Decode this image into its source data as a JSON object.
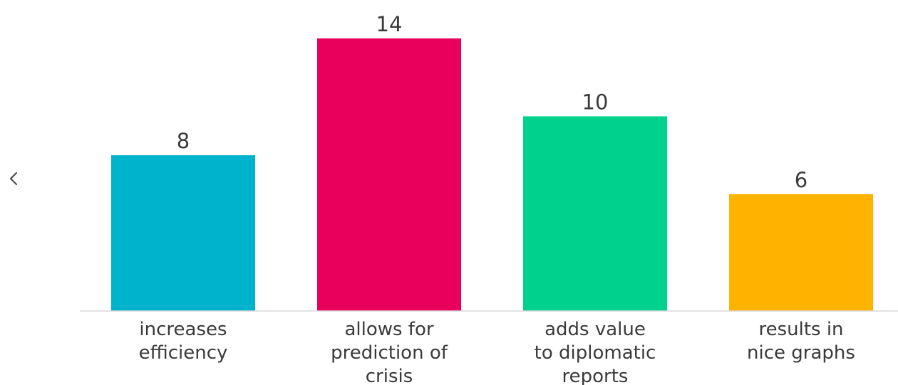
{
  "nav": {
    "prev_icon": "chevron-left-icon"
  },
  "chart_data": {
    "type": "bar",
    "categories": [
      [
        "increases",
        "efficiency"
      ],
      [
        "allows for",
        "prediction of",
        "crisis"
      ],
      [
        "adds value",
        "to diplomatic",
        "reports"
      ],
      [
        "results in",
        "nice graphs"
      ]
    ],
    "values": [
      8,
      14,
      10,
      6
    ],
    "colors": [
      "#00b3cc",
      "#e8005c",
      "#00d28e",
      "#ffb300"
    ],
    "title": "",
    "xlabel": "",
    "ylabel": "",
    "ylim": [
      0,
      14
    ],
    "grid": false,
    "legend": "none"
  }
}
